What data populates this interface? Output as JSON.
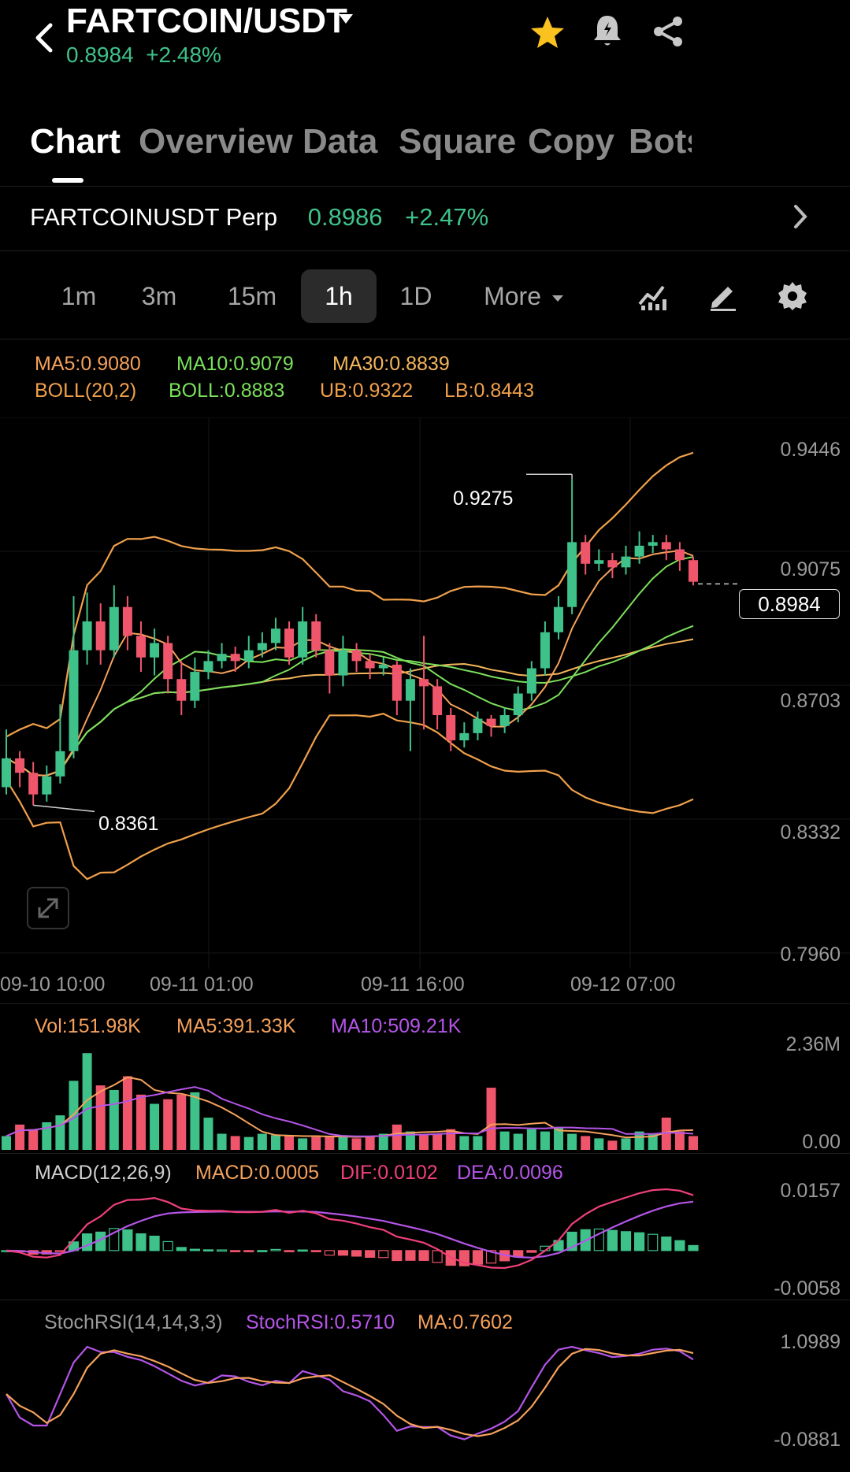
{
  "header": {
    "pair": "FARTCOIN/USDT",
    "price": "0.8984",
    "change": "+2.48%",
    "icons": [
      "back-icon",
      "dropdown-caret-icon",
      "star-icon",
      "alert-bell-icon",
      "share-icon"
    ]
  },
  "tabs": [
    {
      "label": "Chart",
      "active": true
    },
    {
      "label": "Overview"
    },
    {
      "label": "Data"
    },
    {
      "label": "Square"
    },
    {
      "label": "Copy"
    },
    {
      "label": "Bots"
    }
  ],
  "perp": {
    "name": "FARTCOINUSDT Perp",
    "price": "0.8986",
    "change": "+2.47%"
  },
  "timeframes": [
    {
      "label": "1m"
    },
    {
      "label": "3m"
    },
    {
      "label": "15m"
    },
    {
      "label": "1h",
      "active": true
    },
    {
      "label": "1D"
    },
    {
      "label": "More"
    }
  ],
  "toolbar_icons": [
    "indicator-icon",
    "draw-icon",
    "settings-icon"
  ],
  "indicators": {
    "ma5": "MA5:0.9080",
    "ma10": "MA10:0.9079",
    "ma30": "MA30:0.8839",
    "boll": "BOLL(20,2)",
    "boll_mid": "BOLL:0.8883",
    "ub": "UB:0.9322",
    "lb": "LB:0.8443"
  },
  "colors": {
    "up": "#3ec28a",
    "down": "#f0566b",
    "ma5": "#f5a15b",
    "ma10": "#7be05c",
    "ma30": "#f4b65c",
    "boll": "#f0a04b",
    "purple": "#b455e8",
    "pink": "#f0407a"
  },
  "chart_data": [
    {
      "type": "candlestick",
      "y_ticks": [
        "0.9446",
        "0.9075",
        "0.8703",
        "0.8332",
        "0.7960"
      ],
      "x_ticks": [
        "09-10 10:00",
        "09-11 01:00",
        "09-11 16:00",
        "09-12 07:00"
      ],
      "current_price": "0.8984",
      "high_label": "0.9275",
      "low_label": "0.8361",
      "candles": [
        [
          0.842,
          0.85,
          0.858,
          0.84
        ],
        [
          0.85,
          0.846,
          0.852,
          0.842
        ],
        [
          0.846,
          0.84,
          0.849,
          0.837
        ],
        [
          0.84,
          0.845,
          0.848,
          0.838
        ],
        [
          0.845,
          0.852,
          0.865,
          0.843
        ],
        [
          0.852,
          0.88,
          0.895,
          0.85
        ],
        [
          0.88,
          0.888,
          0.896,
          0.876
        ],
        [
          0.888,
          0.88,
          0.893,
          0.876
        ],
        [
          0.88,
          0.892,
          0.898,
          0.878
        ],
        [
          0.892,
          0.884,
          0.895,
          0.88
        ],
        [
          0.884,
          0.878,
          0.888,
          0.874
        ],
        [
          0.878,
          0.882,
          0.886,
          0.873
        ],
        [
          0.882,
          0.872,
          0.884,
          0.868
        ],
        [
          0.872,
          0.866,
          0.877,
          0.862
        ],
        [
          0.866,
          0.874,
          0.878,
          0.864
        ],
        [
          0.874,
          0.877,
          0.88,
          0.872
        ],
        [
          0.877,
          0.879,
          0.882,
          0.875
        ],
        [
          0.879,
          0.877,
          0.881,
          0.874
        ],
        [
          0.877,
          0.88,
          0.884,
          0.875
        ],
        [
          0.88,
          0.882,
          0.885,
          0.878
        ],
        [
          0.882,
          0.886,
          0.889,
          0.88
        ],
        [
          0.886,
          0.878,
          0.888,
          0.876
        ],
        [
          0.878,
          0.888,
          0.892,
          0.876
        ],
        [
          0.888,
          0.88,
          0.89,
          0.878
        ],
        [
          0.88,
          0.873,
          0.882,
          0.868
        ],
        [
          0.873,
          0.88,
          0.884,
          0.87
        ],
        [
          0.88,
          0.877,
          0.882,
          0.874
        ],
        [
          0.877,
          0.875,
          0.879,
          0.872
        ],
        [
          0.875,
          0.876,
          0.878,
          0.873
        ],
        [
          0.876,
          0.866,
          0.877,
          0.862
        ],
        [
          0.866,
          0.872,
          0.875,
          0.852
        ],
        [
          0.872,
          0.87,
          0.884,
          0.858
        ],
        [
          0.87,
          0.862,
          0.872,
          0.858
        ],
        [
          0.862,
          0.855,
          0.864,
          0.852
        ],
        [
          0.855,
          0.857,
          0.86,
          0.853
        ],
        [
          0.857,
          0.861,
          0.863,
          0.855
        ],
        [
          0.861,
          0.859,
          0.862,
          0.856
        ],
        [
          0.859,
          0.862,
          0.864,
          0.857
        ],
        [
          0.862,
          0.868,
          0.87,
          0.86
        ],
        [
          0.868,
          0.875,
          0.877,
          0.866
        ],
        [
          0.875,
          0.885,
          0.888,
          0.873
        ],
        [
          0.885,
          0.892,
          0.895,
          0.883
        ],
        [
          0.892,
          0.91,
          0.9275,
          0.89
        ],
        [
          0.91,
          0.904,
          0.912,
          0.901
        ],
        [
          0.904,
          0.905,
          0.908,
          0.902
        ],
        [
          0.905,
          0.903,
          0.907,
          0.9
        ],
        [
          0.903,
          0.906,
          0.909,
          0.901
        ],
        [
          0.906,
          0.909,
          0.913,
          0.904
        ],
        [
          0.909,
          0.91,
          0.912,
          0.907
        ],
        [
          0.91,
          0.908,
          0.912,
          0.905
        ],
        [
          0.908,
          0.905,
          0.91,
          0.902
        ],
        [
          0.905,
          0.899,
          0.906,
          0.898
        ]
      ]
    },
    {
      "type": "bar",
      "labels": {
        "vol": "Vol:151.98K",
        "ma5": "MA5:391.33K",
        "ma10": "MA10:509.21K"
      },
      "y_ticks": [
        "2.36M",
        "0.00"
      ],
      "values": [
        0.3,
        0.55,
        0.45,
        0.6,
        0.75,
        1.5,
        2.1,
        1.4,
        1.3,
        1.6,
        1.2,
        1.0,
        1.1,
        1.2,
        1.25,
        0.7,
        0.35,
        0.3,
        0.28,
        0.35,
        0.32,
        0.3,
        0.25,
        0.28,
        0.3,
        0.32,
        0.25,
        0.3,
        0.35,
        0.55,
        0.4,
        0.32,
        0.35,
        0.45,
        0.3,
        0.3,
        1.35,
        0.4,
        0.35,
        0.45,
        0.4,
        0.5,
        0.35,
        0.3,
        0.25,
        0.2,
        0.25,
        0.4,
        0.35,
        0.7,
        0.4,
        0.3
      ]
    },
    {
      "type": "line",
      "labels": {
        "title": "MACD(12,26,9)",
        "macd": "MACD:0.0005",
        "dif": "DIF:0.0102",
        "dea": "DEA:0.0096"
      },
      "y_ticks": [
        "0.0157",
        "-0.0058"
      ]
    },
    {
      "type": "line",
      "labels": {
        "title": "StochRSI(14,14,3,3)",
        "stoch": "StochRSI:0.5710",
        "ma": "MA:0.7602"
      },
      "y_ticks": [
        "1.0989",
        "-0.0881"
      ]
    }
  ]
}
